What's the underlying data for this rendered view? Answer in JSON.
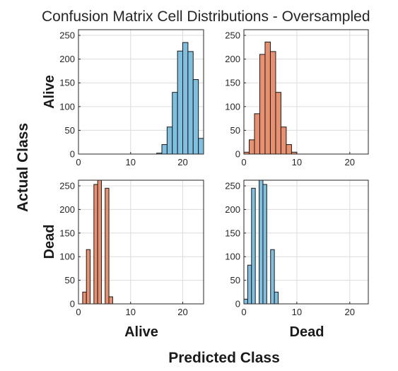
{
  "figure": {
    "title": "Confusion Matrix Cell Distributions - Oversampled",
    "x_axis_label": "Predicted Class",
    "y_axis_label": "Actual Class",
    "column_labels": [
      "Alive",
      "Dead"
    ],
    "row_labels": [
      "Alive",
      "Dead"
    ]
  },
  "colors": {
    "correct": "#7fbfe0",
    "error": "#e8906f",
    "bar_edge": "#1a1a1a",
    "grid": "#dcdcdc",
    "axes": "#262626"
  },
  "chart_data": [
    {
      "type": "bar",
      "row": "Alive",
      "column": "Alive",
      "color": "#7fbfe0",
      "xlim": [
        0,
        24
      ],
      "ylim": [
        0,
        262
      ],
      "xticks": [
        0,
        10,
        20
      ],
      "yticks": [
        0,
        50,
        100,
        150,
        200,
        250
      ],
      "bin_width": 1,
      "bin_centers": [
        15.5,
        16.5,
        17.5,
        18.5,
        19.5,
        20.5,
        21.5,
        22.5,
        23.5
      ],
      "values": [
        2,
        20,
        57,
        130,
        217,
        235,
        216,
        157,
        33
      ]
    },
    {
      "type": "bar",
      "row": "Alive",
      "column": "Dead",
      "color": "#e8906f",
      "xlim": [
        0,
        23.5
      ],
      "ylim": [
        0,
        262
      ],
      "xticks": [
        0,
        10,
        20
      ],
      "yticks": [
        0,
        50,
        100,
        150,
        200,
        250
      ],
      "bin_width": 1,
      "bin_centers": [
        0.5,
        1.5,
        2.5,
        3.5,
        4.5,
        5.5,
        6.5,
        7.5,
        8.5,
        9.5
      ],
      "values": [
        4,
        30,
        85,
        210,
        236,
        216,
        130,
        57,
        20,
        4
      ]
    },
    {
      "type": "bar",
      "row": "Dead",
      "column": "Alive",
      "color": "#e8906f",
      "xlim": [
        0,
        24
      ],
      "ylim": [
        0,
        262
      ],
      "xticks": [
        0,
        10,
        20
      ],
      "yticks": [
        0,
        50,
        100,
        150,
        200,
        250
      ],
      "bin_width": 0.72,
      "bin_centers": [
        1.16,
        1.88,
        2.6,
        3.32,
        4.04,
        4.76,
        5.48,
        6.2
      ],
      "values": [
        25,
        115,
        0,
        253,
        265,
        0,
        245,
        15
      ]
    },
    {
      "type": "bar",
      "row": "Dead",
      "column": "Dead",
      "color": "#7fbfe0",
      "xlim": [
        0,
        23.5
      ],
      "ylim": [
        0,
        262
      ],
      "xticks": [
        0,
        10,
        20
      ],
      "yticks": [
        0,
        50,
        100,
        150,
        200,
        250
      ],
      "bin_width": 0.72,
      "bin_centers": [
        0.36,
        1.08,
        1.8,
        2.52,
        3.24,
        3.96,
        4.68,
        5.4,
        6.12
      ],
      "values": [
        10,
        82,
        245,
        0,
        265,
        253,
        0,
        115,
        25
      ]
    }
  ]
}
